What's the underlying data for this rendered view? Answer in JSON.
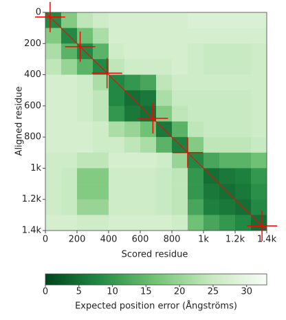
{
  "chart_data": {
    "type": "heatmap",
    "xlabel": "Scored residue",
    "ylabel": "Aligned residue",
    "xbins": [
      0,
      100,
      200,
      300,
      400,
      500,
      600,
      700,
      800,
      900,
      1000,
      1100,
      1200,
      1300,
      1400
    ],
    "ybins": [
      0,
      100,
      200,
      300,
      400,
      500,
      600,
      700,
      800,
      900,
      1000,
      1100,
      1200,
      1300,
      1400
    ],
    "z": [
      [
        8,
        18,
        24,
        26,
        27,
        27,
        27,
        27,
        27,
        28,
        28,
        28,
        28,
        28
      ],
      [
        18,
        8,
        16,
        22,
        27,
        27,
        27,
        27,
        27,
        27,
        27,
        27,
        27,
        27
      ],
      [
        22,
        14,
        8,
        14,
        26,
        27,
        27,
        27,
        27,
        26,
        25,
        25,
        25,
        26
      ],
      [
        24,
        20,
        14,
        8,
        24,
        26,
        26,
        26,
        27,
        26,
        25,
        25,
        25,
        26
      ],
      [
        27,
        27,
        26,
        22,
        8,
        10,
        12,
        24,
        26,
        26,
        26,
        26,
        26,
        26
      ],
      [
        27,
        27,
        26,
        24,
        8,
        5,
        6,
        22,
        25,
        25,
        25,
        25,
        25,
        26
      ],
      [
        27,
        27,
        26,
        24,
        10,
        6,
        5,
        18,
        24,
        25,
        25,
        25,
        25,
        26
      ],
      [
        27,
        27,
        27,
        26,
        22,
        20,
        16,
        6,
        14,
        24,
        25,
        25,
        25,
        26
      ],
      [
        27,
        27,
        27,
        26,
        26,
        24,
        22,
        14,
        7,
        18,
        24,
        24,
        24,
        25
      ],
      [
        26,
        26,
        24,
        24,
        27,
        27,
        27,
        26,
        20,
        8,
        12,
        14,
        14,
        16
      ],
      [
        26,
        25,
        18,
        18,
        26,
        26,
        26,
        25,
        24,
        10,
        5,
        6,
        7,
        10
      ],
      [
        26,
        25,
        18,
        18,
        26,
        26,
        26,
        25,
        24,
        10,
        6,
        5,
        6,
        9
      ],
      [
        26,
        25,
        20,
        20,
        26,
        26,
        26,
        25,
        24,
        12,
        7,
        6,
        5,
        8
      ],
      [
        27,
        27,
        26,
        26,
        27,
        27,
        27,
        27,
        26,
        16,
        12,
        10,
        8,
        5
      ]
    ],
    "xlim": [
      0,
      1400
    ],
    "ylim": [
      0,
      1400
    ],
    "xticks": [
      0,
      200,
      400,
      600,
      800,
      {
        "value": 1000,
        "label": "1k"
      },
      {
        "value": 1200,
        "label": "1.2k"
      },
      {
        "value": 1400,
        "label": "1.4k"
      }
    ],
    "yticks": [
      0,
      200,
      400,
      600,
      800,
      {
        "value": 1000,
        "label": "1k"
      },
      {
        "value": 1200,
        "label": "1.2k"
      },
      {
        "value": 1400,
        "label": "1.4k"
      }
    ],
    "colormap": [
      "#00441b",
      "#238b45",
      "#74c476",
      "#c7e9c0",
      "#f7fcf5"
    ],
    "clim": [
      0,
      33
    ],
    "colorbar_ticks": [
      0,
      5,
      10,
      15,
      20,
      25,
      30
    ],
    "colorbar_label": "Expected position error (Ångströms)",
    "markers": [
      [
        30,
        30
      ],
      [
        220,
        220
      ],
      [
        390,
        390
      ],
      [
        680,
        680
      ],
      [
        900,
        900
      ],
      [
        1370,
        1370
      ]
    ],
    "marker_color": "#ff0000"
  }
}
